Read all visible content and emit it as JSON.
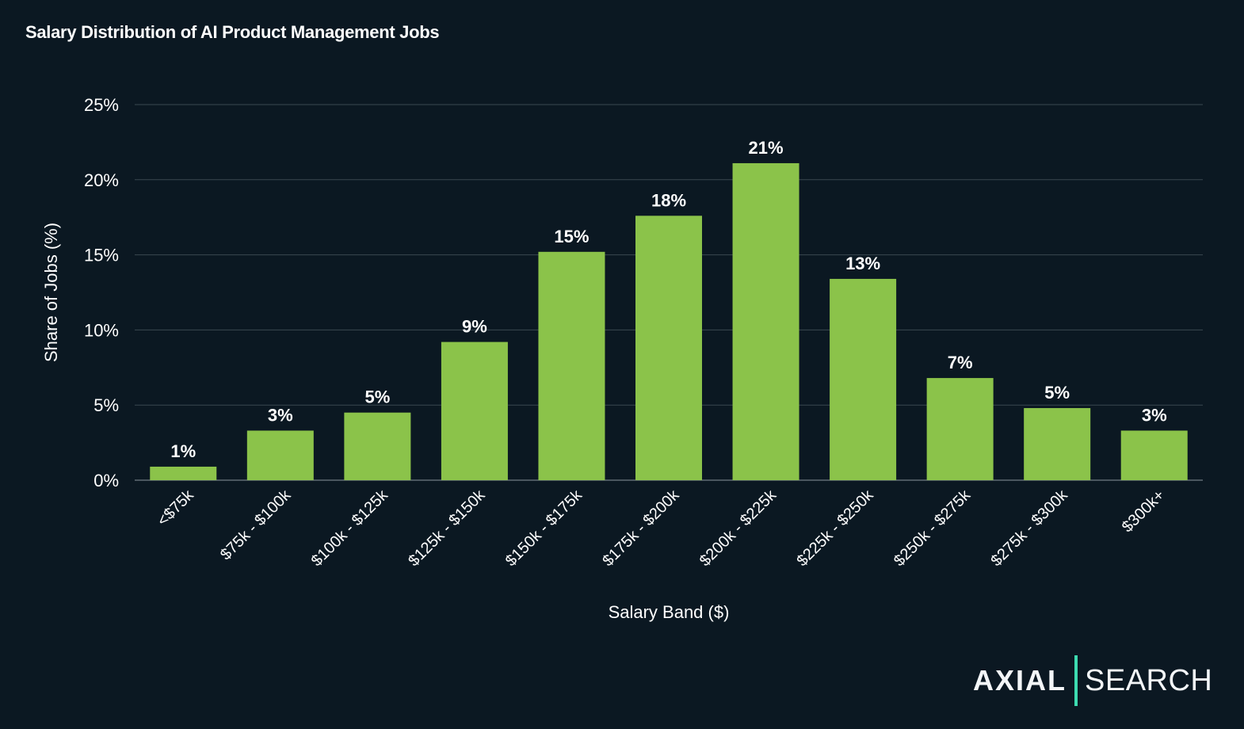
{
  "chart_data": {
    "type": "bar",
    "title": "Salary Distribution of AI Product Management Jobs",
    "xlabel": "Salary Band ($)",
    "ylabel": "Share of Jobs (%)",
    "categories": [
      "<$75k",
      "$75k - $100k",
      "$100k - $125k",
      "$125k - $150k",
      "$150k - $175k",
      "$175k - $200k",
      "$200k - $225k",
      "$225k - $250k",
      "$250k - $275k",
      "$275k - $300k",
      "$300k+"
    ],
    "values": [
      0.9,
      3.3,
      4.5,
      9.2,
      15.2,
      17.6,
      21.1,
      13.4,
      6.8,
      4.8,
      3.3
    ],
    "data_labels": [
      "1%",
      "3%",
      "5%",
      "9%",
      "15%",
      "18%",
      "21%",
      "13%",
      "7%",
      "5%",
      "3%"
    ],
    "ylim": [
      0,
      25
    ],
    "yticks": [
      0,
      5,
      10,
      15,
      20,
      25
    ],
    "ytick_labels": [
      "0%",
      "5%",
      "10%",
      "15%",
      "20%",
      "25%"
    ],
    "grid": true,
    "bar_color": "#8bc34a",
    "background": "#0b1822"
  },
  "logo": {
    "left": "AXIAL",
    "right": "SEARCH",
    "accent": "#3ddbb0"
  }
}
